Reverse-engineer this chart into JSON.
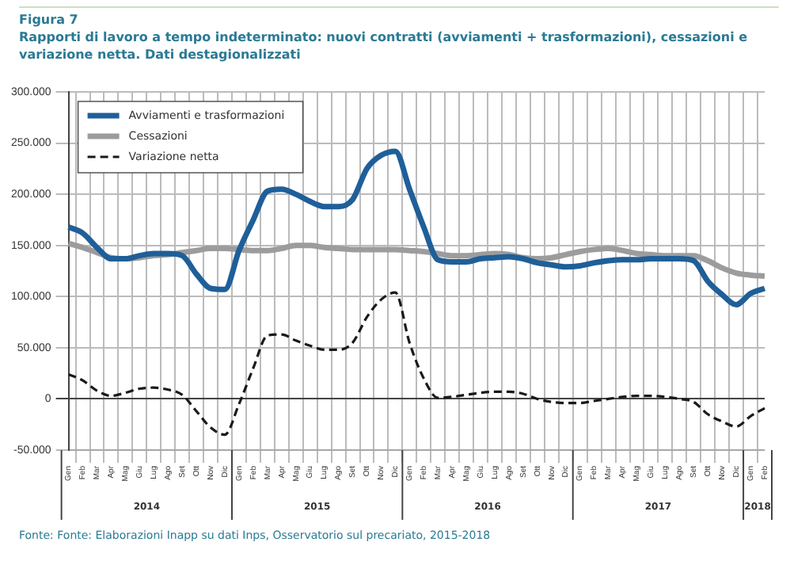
{
  "chart_data": {
    "type": "line",
    "title": "Figura 7",
    "subtitle": "Rapporti di lavoro a tempo indeterminato: nuovi contratti (avviamenti + trasformazioni), cessazioni e variazione netta. Dati destagionalizzati",
    "categories": [
      "Gen",
      "Feb",
      "Mar",
      "Apr",
      "Mag",
      "Giu",
      "Lug",
      "Ago",
      "Set",
      "Ott",
      "Nov",
      "Dic",
      "Gen",
      "Feb",
      "Mar",
      "Apr",
      "Mag",
      "Giu",
      "Lug",
      "Ago",
      "Set",
      "Ott",
      "Nov",
      "Dic",
      "Gen",
      "Feb",
      "Mar",
      "Apr",
      "Mag",
      "Giu",
      "Lug",
      "Ago",
      "Set",
      "Ott",
      "Nov",
      "Dic",
      "Gen",
      "Feb",
      "Mar",
      "Apr",
      "Mag",
      "Giu",
      "Lug",
      "Ago",
      "Set",
      "Ott",
      "Nov",
      "Dic",
      "Gen",
      "Feb"
    ],
    "series": [
      {
        "name": "Avviamenti e trasformazioni",
        "color": "#1f5f99",
        "values": [
          168000,
          162000,
          148000,
          137000,
          137000,
          140000,
          142000,
          142000,
          140000,
          122000,
          108000,
          107000,
          145000,
          175000,
          203000,
          205000,
          200000,
          193000,
          188000,
          188000,
          195000,
          225000,
          238000,
          242000,
          205000,
          168000,
          136000,
          134000,
          134000,
          137000,
          138000,
          139000,
          137000,
          133000,
          131000,
          129000,
          130000,
          133000,
          135000,
          136000,
          136000,
          137000,
          137000,
          137000,
          135000,
          115000,
          102000,
          92000,
          103000,
          108000
        ]
      },
      {
        "name": "Cessazioni",
        "color": "#9c9c9c",
        "values": [
          152000,
          148000,
          143000,
          138000,
          137000,
          138000,
          140000,
          141000,
          143000,
          145000,
          147000,
          147000,
          146000,
          145000,
          145000,
          147000,
          150000,
          150000,
          148000,
          147000,
          146000,
          146000,
          146000,
          146000,
          145000,
          144000,
          142000,
          140000,
          140000,
          141000,
          142000,
          141000,
          138000,
          137000,
          138000,
          141000,
          144000,
          146000,
          147000,
          145000,
          142000,
          141000,
          140000,
          140000,
          140000,
          135000,
          128000,
          123000,
          121000,
          120000
        ]
      },
      {
        "name": "Variazione netta",
        "color": "#1a1a1a",
        "line_style": "dashed",
        "values": [
          24000,
          18000,
          8000,
          3000,
          6000,
          10000,
          11000,
          9000,
          4000,
          -12000,
          -28000,
          -35000,
          -5000,
          30000,
          62000,
          63000,
          57000,
          52000,
          48000,
          48000,
          55000,
          80000,
          97000,
          104000,
          55000,
          20000,
          1000,
          2000,
          4000,
          6000,
          7000,
          7000,
          5000,
          0,
          -3000,
          -4000,
          -4000,
          -2000,
          0,
          2000,
          3000,
          3000,
          2000,
          0,
          -3000,
          -15000,
          -22000,
          -27000,
          -17000,
          -9000
        ]
      }
    ],
    "ylim": [
      -50000,
      300000
    ],
    "yticks": [
      {
        "value": -50000,
        "label": "-50.000"
      },
      0,
      {
        "value": 50000,
        "label": "50.000"
      },
      {
        "value": 100000,
        "label": "100.000"
      },
      {
        "value": 150000,
        "label": "150.000"
      },
      {
        "value": 200000,
        "label": "200.000"
      },
      {
        "value": 250000,
        "label": "250.000"
      },
      {
        "value": 300000,
        "label": "300.000"
      }
    ],
    "grid": true,
    "legend": "top left",
    "marker": "none",
    "annotations": [
      "2014",
      "2015",
      "2016",
      "2017",
      "2018",
      "Fonte: Fonte: Elaborazioni Inapp su dati Inps, Osservatorio sul precariato, 2015-2018"
    ]
  }
}
